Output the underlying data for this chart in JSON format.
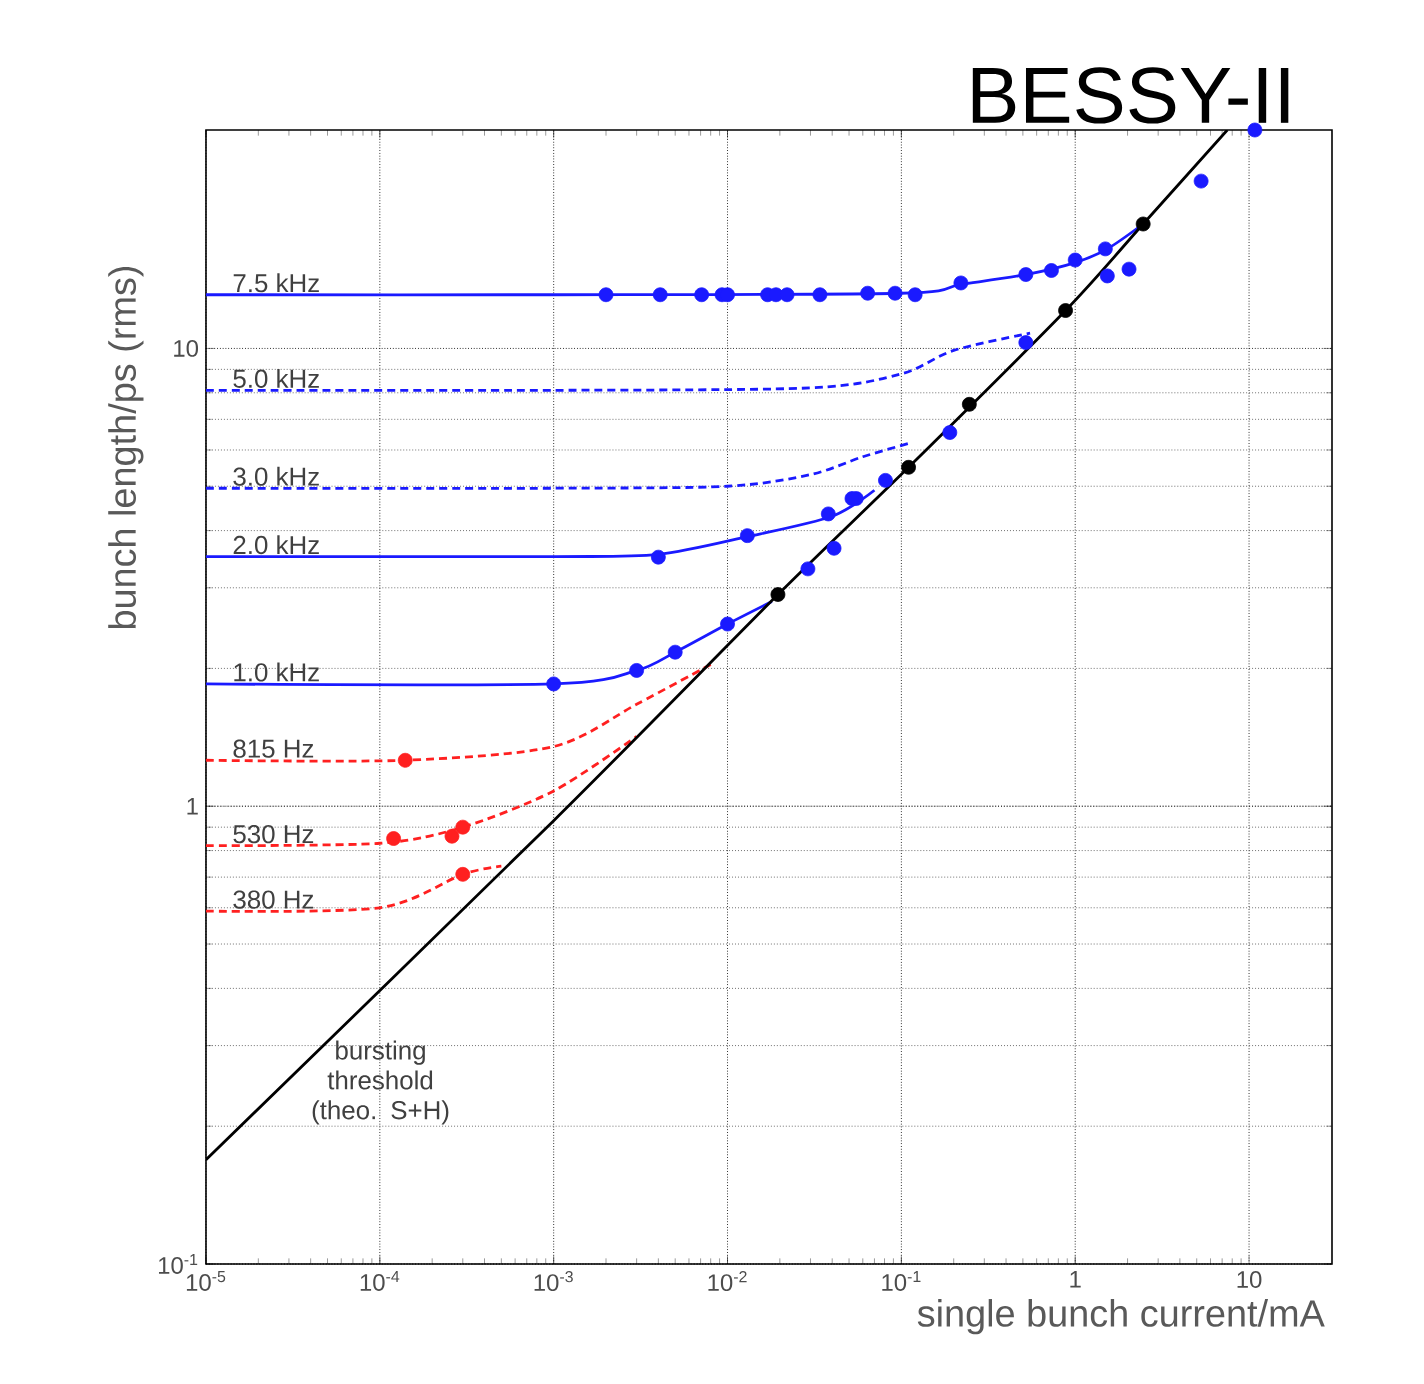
{
  "chart_data": {
    "type": "line",
    "title": "BESSY-II",
    "xlabel": "single bunch current/mA",
    "ylabel": "bunch length/ps (rms)",
    "log": "xy",
    "grid": true,
    "xlim": [
      1e-05,
      30
    ],
    "ylim": [
      0.1,
      30
    ],
    "xticks": [
      {
        "value": 1e-05,
        "label": "10$^{-5}$"
      },
      {
        "value": 0.0001,
        "label": "10$^{-4}$"
      },
      {
        "value": 0.001,
        "label": "10$^{-3}$"
      },
      {
        "value": 0.01,
        "label": "10$^{-2}$"
      },
      {
        "value": 0.1,
        "label": "10$^{-1}$"
      },
      1,
      10
    ],
    "yticks": [
      {
        "value": 0.1,
        "label": "10$^{-1}$"
      },
      1,
      10
    ],
    "annotations": [
      "bursting threshold (theo. S+H)"
    ],
    "series": [
      {
        "name": "7.5 kHz",
        "line_style": "solid",
        "color": "#1a1aff",
        "x": [
          1e-05,
          0.001,
          0.1,
          0.22,
          0.52,
          1.0,
          1.53,
          2.46
        ],
        "values": [
          13.1,
          13.1,
          13.2,
          13.8,
          14.5,
          15.4,
          16.5,
          18.7
        ]
      },
      {
        "name": "5.0 kHz",
        "line_style": "dashed",
        "color": "#1a1aff",
        "x": [
          1e-05,
          0.001,
          0.03,
          0.1,
          0.2,
          0.55
        ],
        "values": [
          8.1,
          8.1,
          8.2,
          8.8,
          9.9,
          10.8
        ]
      },
      {
        "name": "3.0 kHz",
        "line_style": "dashed",
        "color": "#1a1aff",
        "x": [
          1e-05,
          0.001,
          0.01,
          0.03,
          0.06,
          0.11
        ],
        "values": [
          4.95,
          4.95,
          5.0,
          5.3,
          5.8,
          6.2
        ]
      },
      {
        "name": "2.0 kHz",
        "line_style": "solid",
        "color": "#1a1aff",
        "x": [
          1e-05,
          0.001,
          0.004,
          0.013,
          0.04,
          0.07
        ],
        "values": [
          3.51,
          3.51,
          3.55,
          3.88,
          4.3,
          4.9
        ]
      },
      {
        "name": "1.0 kHz",
        "line_style": "solid",
        "color": "#1a1aff",
        "x": [
          1e-05,
          0.001,
          0.003,
          0.005,
          0.01,
          0.018
        ],
        "values": [
          1.85,
          1.85,
          1.98,
          2.17,
          2.5,
          2.8
        ]
      },
      {
        "name": "815 Hz",
        "line_style": "dashed",
        "color": "#ff2020",
        "x": [
          1e-05,
          0.00014,
          0.001,
          0.003,
          0.008
        ],
        "values": [
          1.26,
          1.26,
          1.35,
          1.67,
          2.04
        ]
      },
      {
        "name": "530 Hz",
        "line_style": "dashed",
        "color": "#ff2020",
        "x": [
          1e-05,
          0.0001,
          0.0003,
          0.001,
          0.003
        ],
        "values": [
          0.82,
          0.83,
          0.9,
          1.08,
          1.42
        ]
      },
      {
        "name": "380 Hz",
        "line_style": "dashed",
        "color": "#ff2020",
        "x": [
          1e-05,
          0.0001,
          0.0003,
          0.0005
        ],
        "values": [
          0.59,
          0.6,
          0.71,
          0.74
        ]
      },
      {
        "line_style": "solid",
        "color": "#000000",
        "x": [
          1e-05,
          0.001,
          0.0195,
          0.11,
          0.88,
          2.46,
          7.5
        ],
        "values": [
          0.169,
          0.93,
          2.9,
          5.5,
          12.1,
          18.7,
          30
        ]
      },
      {
        "type": "scatter",
        "marker": "circle",
        "color": "#1a1aff",
        "x": [
          0.002,
          0.0041,
          0.0071,
          0.0093,
          0.01,
          0.017,
          0.019,
          0.022,
          0.034,
          0.064,
          0.092,
          0.12,
          0.22,
          0.52,
          0.73,
          1.0,
          1.49
        ],
        "values": [
          13.1,
          13.1,
          13.1,
          13.1,
          13.1,
          13.1,
          13.1,
          13.1,
          13.1,
          13.2,
          13.2,
          13.1,
          13.9,
          14.5,
          14.8,
          15.6,
          16.5
        ]
      },
      {
        "type": "scatter",
        "marker": "circle",
        "color": "#1a1aff",
        "x": [
          0.001,
          0.003,
          0.005,
          0.01,
          0.004,
          0.013,
          0.038,
          0.055,
          0.029,
          0.041,
          0.052,
          0.081,
          0.19,
          0.52,
          1.53,
          2.04,
          5.3,
          10.8
        ],
        "values": [
          1.85,
          1.98,
          2.17,
          2.5,
          3.5,
          3.9,
          4.35,
          4.7,
          3.3,
          3.66,
          4.7,
          5.15,
          6.55,
          10.3,
          14.4,
          14.9,
          23.2,
          30
        ]
      },
      {
        "type": "scatter",
        "marker": "circle",
        "color": "#ff2020",
        "x": [
          0.00014,
          0.00012,
          0.00026,
          0.0003,
          0.0003
        ],
        "values": [
          1.26,
          0.85,
          0.86,
          0.9,
          0.71
        ]
      },
      {
        "type": "scatter",
        "marker": "circle",
        "color": "#000000",
        "x": [
          0.0195,
          0.11,
          0.246,
          0.88,
          2.46
        ],
        "values": [
          2.9,
          5.5,
          7.55,
          12.1,
          18.7
        ]
      }
    ]
  }
}
